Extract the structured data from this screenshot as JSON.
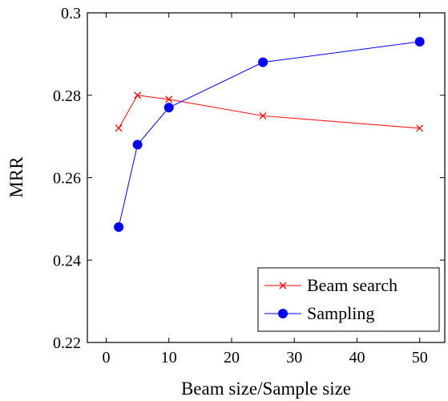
{
  "chart_data": {
    "type": "line",
    "title": "",
    "xlabel": "Beam size/Sample size",
    "ylabel": "MRR",
    "xlim": [
      -3,
      54
    ],
    "ylim": [
      0.22,
      0.3
    ],
    "xticks": [
      0,
      10,
      20,
      30,
      40,
      50
    ],
    "yticks": [
      0.22,
      0.24,
      0.26,
      0.28,
      0.3
    ],
    "xtick_labels": [
      "0",
      "10",
      "20",
      "30",
      "40",
      "50"
    ],
    "ytick_labels": [
      "0.22",
      "0.24",
      "0.26",
      "0.28",
      "0.3"
    ],
    "grid": false,
    "legend_position": "bottom-right",
    "series": [
      {
        "name": "Beam search",
        "color": "#ff0000",
        "marker": "x",
        "x": [
          2,
          5,
          10,
          25,
          50
        ],
        "y": [
          0.272,
          0.28,
          0.279,
          0.275,
          0.272
        ]
      },
      {
        "name": "Sampling",
        "color": "#0000ff",
        "marker": "circle",
        "x": [
          2,
          5,
          10,
          25,
          50
        ],
        "y": [
          0.248,
          0.268,
          0.277,
          0.288,
          0.293
        ]
      }
    ]
  }
}
